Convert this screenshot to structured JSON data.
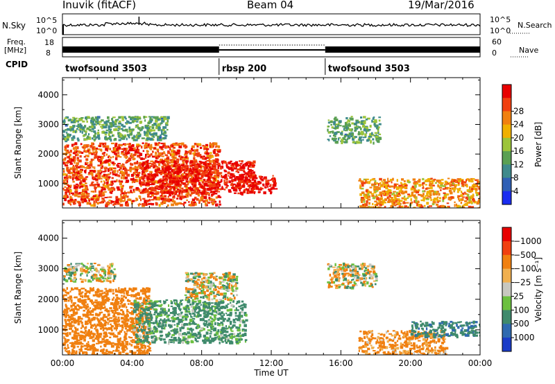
{
  "header": {
    "station": "Inuvik (fitACF)",
    "beam": "Beam 04",
    "date": "19/Mar/2016"
  },
  "aux": {
    "nsky_label": "N.Sky",
    "nsky_ticks": [
      "10^5",
      "10^0"
    ],
    "nsearch_label": "N.Search",
    "nsearch_ticks": [
      "10^5",
      "10^0"
    ],
    "freq_label_line1": "Freq.",
    "freq_label_line2": "[MHz]",
    "freq_ticks": [
      "18",
      "8"
    ],
    "nave_label": "Nave",
    "nave_ticks": [
      "60",
      "0"
    ],
    "cpid_label": "CPID"
  },
  "cpid_segments": [
    {
      "name": "twofsound 3503",
      "start_h": 0,
      "end_h": 9
    },
    {
      "name": "rbsp 200",
      "start_h": 9,
      "end_h": 15.1
    },
    {
      "name": "twofsound 3503",
      "start_h": 15.1,
      "end_h": 24
    }
  ],
  "chart_data": [
    {
      "type": "heatmap",
      "name": "power",
      "ylabel": "Slant Range [km]",
      "yticks": [
        1000,
        2000,
        3000,
        4000
      ],
      "ylim": [
        180,
        4580
      ],
      "xlim": [
        0,
        24
      ],
      "colorbar": {
        "label": "Power [dB]",
        "ticks": [
          "4",
          "8",
          "12",
          "16",
          "20",
          "24",
          "28"
        ],
        "colors": [
          "#1a2cf0",
          "#2f5fb5",
          "#3f8a8c",
          "#5aa053",
          "#9cc43a",
          "#f0b000",
          "#f08010",
          "#f04010",
          "#e80000"
        ]
      },
      "regions": [
        {
          "start_h": 0.0,
          "end_h": 9.0,
          "range_from_km": 300,
          "range_to_km": 2400,
          "level": 26
        },
        {
          "start_h": 4.5,
          "end_h": 11.0,
          "range_from_km": 700,
          "range_to_km": 1800,
          "level": 30
        },
        {
          "start_h": 10.0,
          "end_h": 12.2,
          "range_from_km": 700,
          "range_to_km": 1300,
          "level": 30
        },
        {
          "start_h": 0.0,
          "end_h": 6.0,
          "range_from_km": 2500,
          "range_to_km": 3300,
          "level": 12
        },
        {
          "start_h": 15.2,
          "end_h": 18.2,
          "range_from_km": 2400,
          "range_to_km": 3300,
          "level": 12
        },
        {
          "start_h": 17.0,
          "end_h": 24.0,
          "range_from_km": 200,
          "range_to_km": 1200,
          "level": 22
        }
      ]
    },
    {
      "type": "heatmap",
      "name": "velocity",
      "ylabel": "Slant Range [km]",
      "yticks": [
        1000,
        2000,
        3000,
        4000
      ],
      "ylim": [
        180,
        4580
      ],
      "xlim": [
        0,
        24
      ],
      "xticks": [
        "00:00",
        "04:00",
        "08:00",
        "12:00",
        "16:00",
        "20:00",
        "00:00"
      ],
      "xlabel": "Time UT",
      "colorbar": {
        "label": "Velocity [m s⁻¹]",
        "ticks": [
          "1000",
          "500",
          "100",
          "25",
          "−25",
          "−100",
          "−500",
          "−1000"
        ],
        "colors": [
          "#1a3cc8",
          "#2f6ab0",
          "#3f8a6c",
          "#6cc040",
          "#c8c8c0",
          "#f0b050",
          "#f08010",
          "#f04010",
          "#e80000"
        ]
      },
      "regions": [
        {
          "start_h": 0.0,
          "end_h": 5.0,
          "range_from_km": 200,
          "range_to_km": 2400,
          "level": -300
        },
        {
          "start_h": 4.0,
          "end_h": 10.5,
          "range_from_km": 600,
          "range_to_km": 2000,
          "level": 200
        },
        {
          "start_h": 7.0,
          "end_h": 10.0,
          "range_from_km": 2000,
          "range_to_km": 2900,
          "level": 0
        },
        {
          "start_h": 0.0,
          "end_h": 3.0,
          "range_from_km": 2600,
          "range_to_km": 3200,
          "level": 0
        },
        {
          "start_h": 15.2,
          "end_h": 18.0,
          "range_from_km": 2400,
          "range_to_km": 3200,
          "level": 0
        },
        {
          "start_h": 17.0,
          "end_h": 22.0,
          "range_from_km": 200,
          "range_to_km": 1000,
          "level": -200
        },
        {
          "start_h": 20.0,
          "end_h": 24.0,
          "range_from_km": 800,
          "range_to_km": 1300,
          "level": 400
        }
      ]
    }
  ]
}
